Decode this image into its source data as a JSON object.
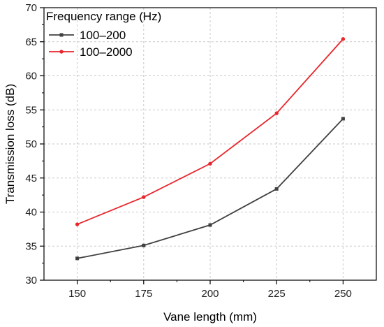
{
  "chart_data": {
    "type": "line",
    "xlabel": "Vane length (mm)",
    "ylabel": "Transmission loss (dB)",
    "x": [
      150,
      175,
      200,
      225,
      250
    ],
    "x_ticks": [
      "150",
      "175",
      "200",
      "225",
      "250"
    ],
    "xlim": [
      137.5,
      262.5
    ],
    "ylim": [
      30,
      70
    ],
    "y_ticks": [
      "30",
      "35",
      "40",
      "45",
      "50",
      "55",
      "60",
      "65",
      "70"
    ],
    "grid": true,
    "legend": {
      "title": "Frequency range (Hz)",
      "placement": "top-left"
    },
    "series": [
      {
        "name": "100–200",
        "color": "#404040",
        "marker": "square",
        "values": [
          33.2,
          35.1,
          38.1,
          43.4,
          53.7
        ]
      },
      {
        "name": "100–2000",
        "color": "#e8262b",
        "marker": "circle",
        "values": [
          38.2,
          42.2,
          47.1,
          54.5,
          65.4
        ]
      }
    ]
  }
}
